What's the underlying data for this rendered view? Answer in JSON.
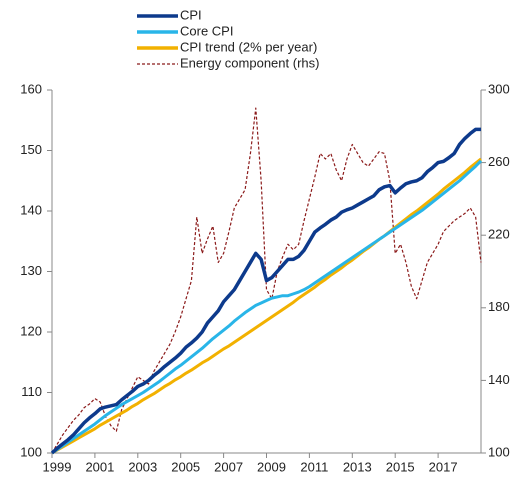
{
  "chart_data": {
    "type": "line",
    "x": [
      1999,
      1999.25,
      1999.5,
      1999.75,
      2000,
      2000.25,
      2000.5,
      2000.75,
      2001,
      2001.25,
      2001.5,
      2001.75,
      2002,
      2002.25,
      2002.5,
      2002.75,
      2003,
      2003.25,
      2003.5,
      2003.75,
      2004,
      2004.25,
      2004.5,
      2004.75,
      2005,
      2005.25,
      2005.5,
      2005.75,
      2006,
      2006.25,
      2006.5,
      2006.75,
      2007,
      2007.25,
      2007.5,
      2007.75,
      2008,
      2008.25,
      2008.5,
      2008.75,
      2009,
      2009.25,
      2009.5,
      2009.75,
      2010,
      2010.25,
      2010.5,
      2010.75,
      2011,
      2011.25,
      2011.5,
      2011.75,
      2012,
      2012.25,
      2012.5,
      2012.75,
      2013,
      2013.25,
      2013.5,
      2013.75,
      2014,
      2014.25,
      2014.5,
      2014.75,
      2015,
      2015.25,
      2015.5,
      2015.75,
      2016,
      2016.25,
      2016.5,
      2016.75,
      2017,
      2017.25,
      2017.5,
      2017.75,
      2018,
      2018.25,
      2018.5,
      2018.75,
      2019
    ],
    "series": [
      {
        "name": "CPI",
        "color": "#0d3a8c",
        "values": [
          100,
          100.8,
          101.5,
          102.2,
          103,
          104,
          105,
          105.8,
          106.5,
          107.3,
          107.6,
          107.8,
          108,
          108.8,
          109.5,
          110.2,
          111,
          111.4,
          112,
          112.8,
          113.5,
          114.3,
          115,
          115.7,
          116.5,
          117.5,
          118.2,
          119,
          120,
          121.5,
          122.5,
          123.5,
          125,
          126,
          127,
          128.5,
          130,
          131.5,
          133,
          132,
          128.5,
          129,
          130,
          131,
          132,
          132,
          132.5,
          133.5,
          135,
          136.5,
          137.2,
          137.8,
          138.5,
          139,
          139.8,
          140.2,
          140.5,
          141,
          141.5,
          142,
          142.5,
          143.5,
          144,
          144.2,
          143,
          143.8,
          144.5,
          144.8,
          145,
          145.5,
          146.5,
          147.2,
          148,
          148.2,
          148.8,
          149.5,
          151,
          152,
          152.8,
          153.5,
          153.5
        ]
      },
      {
        "name": "Core CPI",
        "color": "#29b5e8",
        "values": [
          100,
          100.6,
          101.2,
          101.8,
          102.4,
          103,
          103.6,
          104.2,
          104.8,
          105.5,
          106.2,
          106.8,
          107.4,
          108,
          108.5,
          109,
          109.5,
          110,
          110.6,
          111.2,
          111.8,
          112.5,
          113.2,
          113.9,
          114.5,
          115.2,
          115.9,
          116.6,
          117.3,
          118.1,
          118.9,
          119.6,
          120.3,
          121,
          121.8,
          122.5,
          123.2,
          123.8,
          124.4,
          124.8,
          125.2,
          125.6,
          125.8,
          126,
          126,
          126.3,
          126.6,
          127,
          127.5,
          128.1,
          128.7,
          129.3,
          129.9,
          130.5,
          131.1,
          131.7,
          132.3,
          132.9,
          133.5,
          134.1,
          134.7,
          135.3,
          135.9,
          136.5,
          137.1,
          137.7,
          138.3,
          138.9,
          139.5,
          140.1,
          140.8,
          141.5,
          142.2,
          142.9,
          143.6,
          144.3,
          145,
          145.8,
          146.6,
          147.4,
          148.3
        ]
      },
      {
        "name": "CPI trend (2% per year)",
        "color": "#f2b100",
        "values": [
          100,
          100.5,
          101,
          101.5,
          102,
          102.5,
          103,
          103.5,
          104,
          104.6,
          105.1,
          105.6,
          106.1,
          106.6,
          107.1,
          107.7,
          108.2,
          108.8,
          109.3,
          109.8,
          110.4,
          111,
          111.5,
          112.1,
          112.6,
          113.2,
          113.7,
          114.3,
          114.9,
          115.4,
          116,
          116.6,
          117.2,
          117.7,
          118.3,
          118.9,
          119.5,
          120.1,
          120.7,
          121.3,
          121.9,
          122.5,
          123.1,
          123.7,
          124.3,
          124.9,
          125.6,
          126.2,
          126.8,
          127.4,
          128.1,
          128.7,
          129.4,
          130,
          130.6,
          131.3,
          131.9,
          132.6,
          133.3,
          133.9,
          134.6,
          135.3,
          135.9,
          136.6,
          137.3,
          138,
          138.7,
          139.4,
          140,
          140.7,
          141.4,
          142.1,
          142.8,
          143.6,
          144.3,
          145,
          145.7,
          146.4,
          147.2,
          147.9,
          148.6
        ]
      },
      {
        "name": "Energy component (rhs)",
        "color": "#8b1a1a",
        "axis": "y2",
        "dashed": true,
        "values": [
          100,
          105,
          110,
          114,
          118,
          121,
          125,
          127,
          130,
          128,
          120,
          115,
          112,
          124,
          130,
          136,
          142,
          140,
          138,
          145,
          150,
          155,
          160,
          167,
          175,
          185,
          195,
          230,
          210,
          218,
          225,
          205,
          210,
          222,
          235,
          240,
          245,
          265,
          290,
          250,
          190,
          185,
          200,
          208,
          215,
          212,
          215,
          228,
          240,
          252,
          265,
          262,
          265,
          256,
          250,
          262,
          270,
          265,
          260,
          258,
          262,
          266,
          265,
          250,
          210,
          215,
          205,
          192,
          185,
          195,
          205,
          210,
          215,
          222,
          225,
          228,
          230,
          232,
          235,
          230,
          205
        ]
      }
    ],
    "xlim": [
      1999,
      2019
    ],
    "xticks": [
      1999,
      2001,
      2003,
      2005,
      2007,
      2009,
      2011,
      2013,
      2015,
      2017
    ],
    "ylim": [
      100,
      160
    ],
    "yticks": [
      100,
      110,
      120,
      130,
      140,
      150,
      160
    ],
    "y2lim": [
      100,
      300
    ],
    "y2ticks": [
      100,
      140,
      180,
      220,
      260,
      300
    ]
  }
}
